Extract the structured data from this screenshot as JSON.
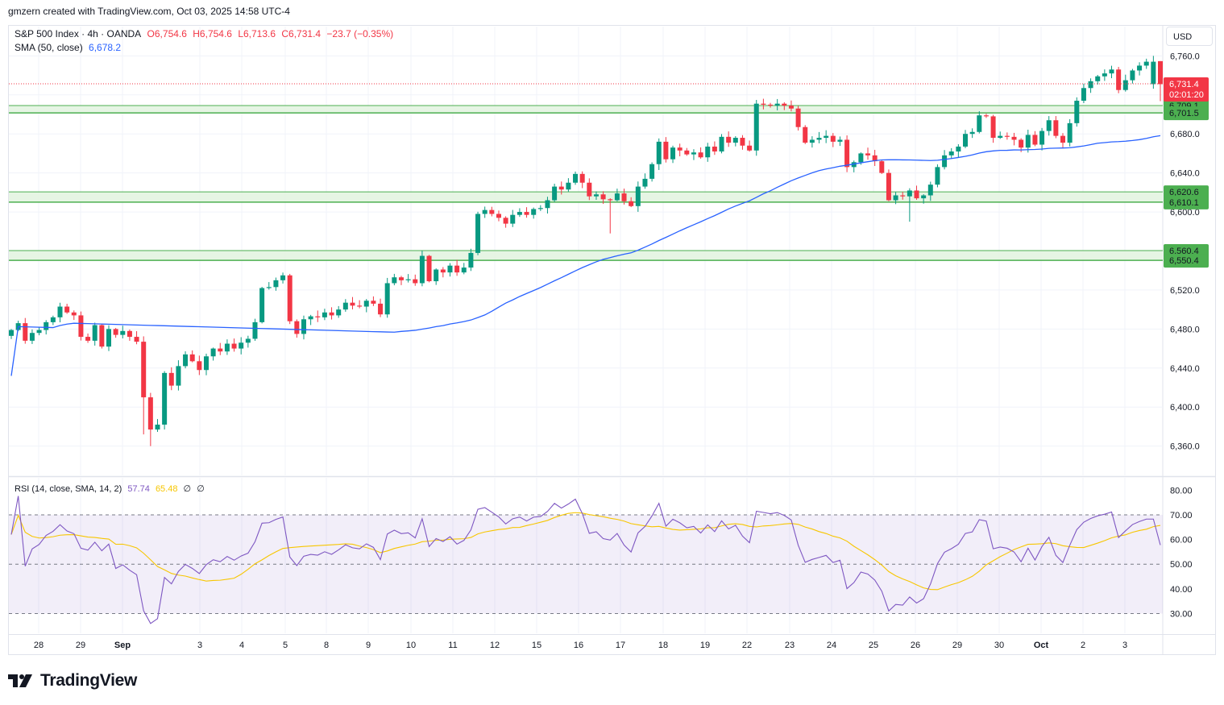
{
  "header": {
    "created_by": "gmzern created with TradingView.com, Oct 03, 2025 14:58 UTC-4"
  },
  "legend": {
    "symbol": "S&P 500 Index · 4h · OANDA",
    "open": "O6,754.6",
    "high": "H6,754.6",
    "low": "L6,713.6",
    "close": "C6,731.4",
    "change": "−23.7 (−0.35%)",
    "sma_label": "SMA (50, close)",
    "sma_value": "6,678.2",
    "rsi_label": "RSI (14, close, SMA, 14, 2)",
    "rsi_value": "57.74",
    "rsi_sma_value": "65.48",
    "rsi_extra1": "∅",
    "rsi_extra2": "∅"
  },
  "currency": "USD",
  "logo": {
    "text": "TradingView"
  },
  "colors": {
    "up": "#089981",
    "down": "#f23645",
    "sma": "#2962ff",
    "rsi": "#7e57c2",
    "rsi_sma": "#f7c600",
    "zone_fill": "#e3f4e1",
    "zone_line": "#4caf50",
    "grid": "#f0f3fa",
    "axis_text": "#131722"
  },
  "chart_data": [
    {
      "type": "candlestick",
      "title": "S&P 500 Index · 4h · OANDA",
      "timeframe": "4h",
      "ylim": [
        6330,
        6790
      ],
      "y_ticks": [
        6360,
        6400,
        6440,
        6480,
        6520,
        6560,
        6600,
        6640,
        6680,
        6720,
        6760
      ],
      "y_tick_labels": [
        "6,360.0",
        "6,400.0",
        "6,440.0",
        "6,480.0",
        "6,520.0",
        "6,560.0",
        "6,600.0",
        "6,640.0",
        "6,680.0",
        "6,720.0",
        "6,760.0"
      ],
      "x_ticks": [
        "28",
        "29",
        "Sep",
        "3",
        "4",
        "5",
        "8",
        "9",
        "10",
        "11",
        "12",
        "15",
        "16",
        "17",
        "18",
        "19",
        "22",
        "23",
        "24",
        "25",
        "26",
        "29",
        "30",
        "Oct",
        "2",
        "3"
      ],
      "last_price": {
        "value": "6,731.4",
        "countdown": "02:01:20"
      },
      "zones": [
        {
          "low": 6701.5,
          "high": 6709.1,
          "low_label": "6,701.5",
          "high_label": "6,709.1"
        },
        {
          "low": 6610.1,
          "high": 6620.6,
          "low_label": "6,610.1",
          "high_label": "6,620.6"
        },
        {
          "low": 6550.4,
          "high": 6560.4,
          "low_label": "6,550.4",
          "high_label": "6,560.4"
        }
      ],
      "closes": [
        6479,
        6486,
        6468,
        6476,
        6479,
        6487,
        6492,
        6503,
        6497,
        6494,
        6472,
        6468,
        6484,
        6462,
        6480,
        6474,
        6478,
        6472,
        6467,
        6410,
        6377,
        6382,
        6435,
        6422,
        6442,
        6454,
        6447,
        6438,
        6452,
        6460,
        6457,
        6465,
        6460,
        6466,
        6470,
        6487,
        6522,
        6523,
        6530,
        6535,
        6488,
        6475,
        6490,
        6493,
        6492,
        6497,
        6494,
        6500,
        6507,
        6504,
        6503,
        6509,
        6506,
        6495,
        6527,
        6533,
        6530,
        6531,
        6527,
        6555,
        6529,
        6541,
        6538,
        6545,
        6538,
        6543,
        6558,
        6598,
        6602,
        6598,
        6594,
        6588,
        6597,
        6600,
        6597,
        6603,
        6604,
        6612,
        6626,
        6623,
        6630,
        6639,
        6630,
        6616,
        6618,
        6613,
        6612,
        6619,
        6611,
        6606,
        6626,
        6634,
        6649,
        6672,
        6654,
        6666,
        6663,
        6659,
        6661,
        6656,
        6667,
        6662,
        6677,
        6671,
        6676,
        6668,
        6663,
        6711,
        6710,
        6709,
        6711,
        6709,
        6706,
        6687,
        6671,
        6674,
        6676,
        6678,
        6672,
        6674,
        6646,
        6651,
        6660,
        6658,
        6652,
        6640,
        6612,
        6617,
        6616,
        6622,
        6614,
        6617,
        6628,
        6646,
        6658,
        6662,
        6667,
        6680,
        6682,
        6699,
        6698,
        6676,
        6678,
        6677,
        6674,
        6666,
        6679,
        6669,
        6683,
        6694,
        6678,
        6671,
        6691,
        6714,
        6727,
        6734,
        6739,
        6742,
        6746,
        6725,
        6735,
        6745,
        6750,
        6754,
        6754,
        6731
      ],
      "sma_50_series": {
        "start_value": 6432,
        "end_value": 6678.2,
        "min_rise": 0.5
      }
    },
    {
      "type": "line",
      "title": "RSI (14, close, SMA, 14, 2)",
      "ylim": [
        22,
        85
      ],
      "y_ticks": [
        30,
        40,
        50,
        60,
        70,
        80
      ],
      "y_tick_labels": [
        "30.00",
        "40.00",
        "50.00",
        "60.00",
        "70.00",
        "80.00"
      ],
      "bands": {
        "upper": 70,
        "middle": 50,
        "lower": 30
      },
      "rsi_sma_length": 14
    }
  ]
}
